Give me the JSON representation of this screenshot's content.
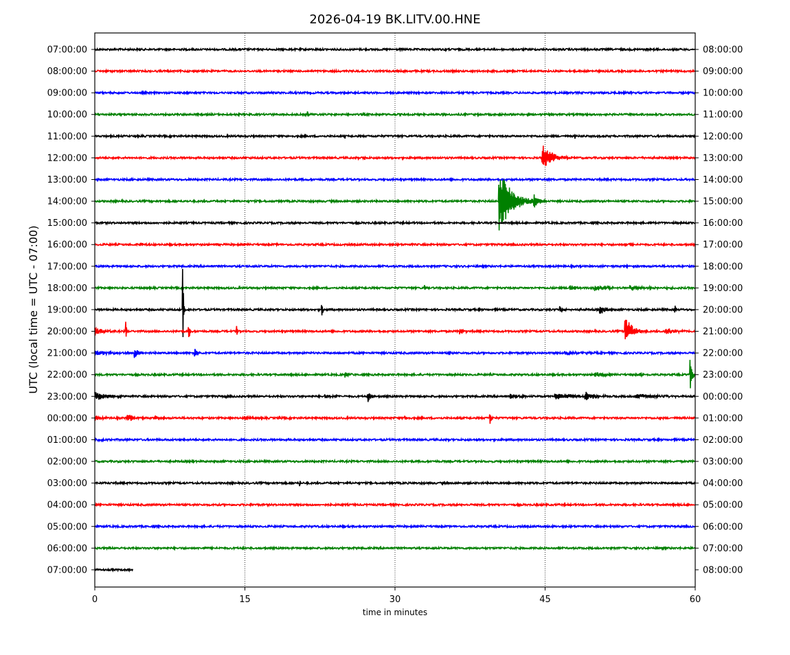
{
  "chart_data": {
    "type": "line",
    "title": "2026-04-19 BK.LITV.00.HNE",
    "xlabel": "time in minutes",
    "ylabel": "UTC (local time = UTC - 07:00)",
    "xlim": [
      0,
      60
    ],
    "xticks": [
      0,
      15,
      30,
      45,
      60
    ],
    "grid": "dotted vertical at 15, 30, 45",
    "colors": [
      "#000000",
      "#ff0000",
      "#0000ff",
      "#008000"
    ],
    "event_note": "events: [minute, amplitude_up, amplitude_down, duration_min] in units of trace spacing",
    "rows": [
      {
        "left": "07:00:00",
        "right": "08:00:00",
        "events": [
          [
            35,
            0.05,
            0.05,
            0.2
          ]
        ]
      },
      {
        "left": "08:00:00",
        "right": "09:00:00",
        "events": []
      },
      {
        "left": "09:00:00",
        "right": "10:00:00",
        "events": [
          [
            19.5,
            0.05,
            0.05,
            0.2
          ]
        ]
      },
      {
        "left": "10:00:00",
        "right": "11:00:00",
        "events": [
          [
            21.3,
            0.12,
            0.15,
            0.1
          ]
        ]
      },
      {
        "left": "11:00:00",
        "right": "12:00:00",
        "events": [
          [
            25,
            0.1,
            0.12,
            0.1
          ],
          [
            48,
            0.12,
            0.1,
            0.1
          ]
        ]
      },
      {
        "left": "12:00:00",
        "right": "13:00:00",
        "events": [
          [
            27,
            0.12,
            0.12,
            0.1
          ],
          [
            44.7,
            0.7,
            0.6,
            2.5
          ]
        ]
      },
      {
        "left": "13:00:00",
        "right": "14:00:00",
        "events": []
      },
      {
        "left": "14:00:00",
        "right": "15:00:00",
        "events": [
          [
            40.4,
            1.5,
            1.5,
            3.5
          ],
          [
            43.9,
            0.35,
            0.35,
            1.5
          ]
        ]
      },
      {
        "left": "15:00:00",
        "right": "16:00:00",
        "events": [
          [
            55.5,
            0.06,
            0.06,
            0.3
          ]
        ]
      },
      {
        "left": "16:00:00",
        "right": "17:00:00",
        "events": [
          [
            4.5,
            0.1,
            0.1,
            0.8
          ],
          [
            53,
            0.08,
            0.08,
            0.6
          ]
        ]
      },
      {
        "left": "17:00:00",
        "right": "18:00:00",
        "events": []
      },
      {
        "left": "18:00:00",
        "right": "19:00:00",
        "events": [
          [
            33,
            0.15,
            0.15,
            0.5
          ],
          [
            47.5,
            0.15,
            0.15,
            1.5
          ],
          [
            50,
            0.12,
            0.12,
            3
          ],
          [
            53.5,
            0.1,
            0.1,
            4.5
          ]
        ]
      },
      {
        "left": "19:00:00",
        "right": "20:00:00",
        "events": [
          [
            8.8,
            2.15,
            2.45,
            0.2
          ],
          [
            22.7,
            0.28,
            0.28,
            0.3
          ],
          [
            46.5,
            0.15,
            0.15,
            1
          ],
          [
            50.5,
            0.3,
            0.3,
            1.2
          ],
          [
            58,
            0.15,
            0.15,
            0.4
          ]
        ]
      },
      {
        "left": "20:00:00",
        "right": "21:00:00",
        "events": [
          [
            0,
            0.2,
            0.2,
            2
          ],
          [
            3.1,
            1.0,
            0.9,
            0.15
          ],
          [
            9.4,
            0.4,
            0.5,
            0.3
          ],
          [
            14.2,
            0.25,
            0.25,
            0.2
          ],
          [
            36.5,
            0.2,
            0.2,
            0.8
          ],
          [
            53,
            0.75,
            0.5,
            2
          ],
          [
            57,
            0.15,
            0.15,
            3
          ]
        ]
      },
      {
        "left": "21:00:00",
        "right": "22:00:00",
        "events": [
          [
            0,
            0.12,
            0.12,
            3
          ],
          [
            4,
            0.25,
            0.25,
            1.2
          ],
          [
            10,
            0.2,
            0.2,
            0.5
          ],
          [
            35.5,
            0.12,
            0.12,
            0.3
          ],
          [
            47,
            0.1,
            0.1,
            4
          ]
        ]
      },
      {
        "left": "22:00:00",
        "right": "23:00:00",
        "events": [
          [
            25,
            0.12,
            0.12,
            0.8
          ],
          [
            50,
            0.15,
            0.15,
            1.5
          ],
          [
            54.5,
            0.1,
            0.1,
            1
          ],
          [
            59.5,
            0.7,
            0.8,
            0.5
          ]
        ]
      },
      {
        "left": "23:00:00",
        "right": "00:00:00",
        "events": [
          [
            0,
            0.2,
            0.2,
            3
          ],
          [
            13,
            0.12,
            0.12,
            0.3
          ],
          [
            23,
            0.1,
            0.1,
            2
          ],
          [
            27.3,
            0.28,
            0.25,
            1
          ],
          [
            41.5,
            0.15,
            0.15,
            2
          ],
          [
            46,
            0.15,
            0.15,
            6
          ],
          [
            49,
            0.22,
            0.22,
            2.5
          ],
          [
            54,
            0.12,
            0.12,
            5
          ]
        ]
      },
      {
        "left": "00:00:00",
        "right": "01:00:00",
        "events": [
          [
            0,
            0.15,
            0.15,
            1.5
          ],
          [
            3.3,
            0.2,
            0.2,
            1.5
          ],
          [
            6,
            0.12,
            0.12,
            1
          ],
          [
            15,
            0.12,
            0.12,
            0.8
          ],
          [
            18.5,
            0.1,
            0.1,
            0.3
          ],
          [
            31,
            0.1,
            0.1,
            0.3
          ],
          [
            39.5,
            0.35,
            0.3,
            0.3
          ],
          [
            56.5,
            0.1,
            0.1,
            0.5
          ]
        ]
      },
      {
        "left": "01:00:00",
        "right": "02:00:00",
        "events": [
          [
            0,
            0.05,
            0.05,
            2
          ]
        ]
      },
      {
        "left": "02:00:00",
        "right": "03:00:00",
        "events": []
      },
      {
        "left": "03:00:00",
        "right": "04:00:00",
        "events": [
          [
            20.5,
            0.12,
            0.12,
            0.3
          ],
          [
            25.5,
            0.1,
            0.1,
            0.2
          ]
        ]
      },
      {
        "left": "04:00:00",
        "right": "05:00:00",
        "events": []
      },
      {
        "left": "05:00:00",
        "right": "06:00:00",
        "events": []
      },
      {
        "left": "06:00:00",
        "right": "07:00:00",
        "events": []
      },
      {
        "left": "07:00:00",
        "right": "08:00:00",
        "events": [],
        "end_minute": 3.8
      }
    ]
  }
}
